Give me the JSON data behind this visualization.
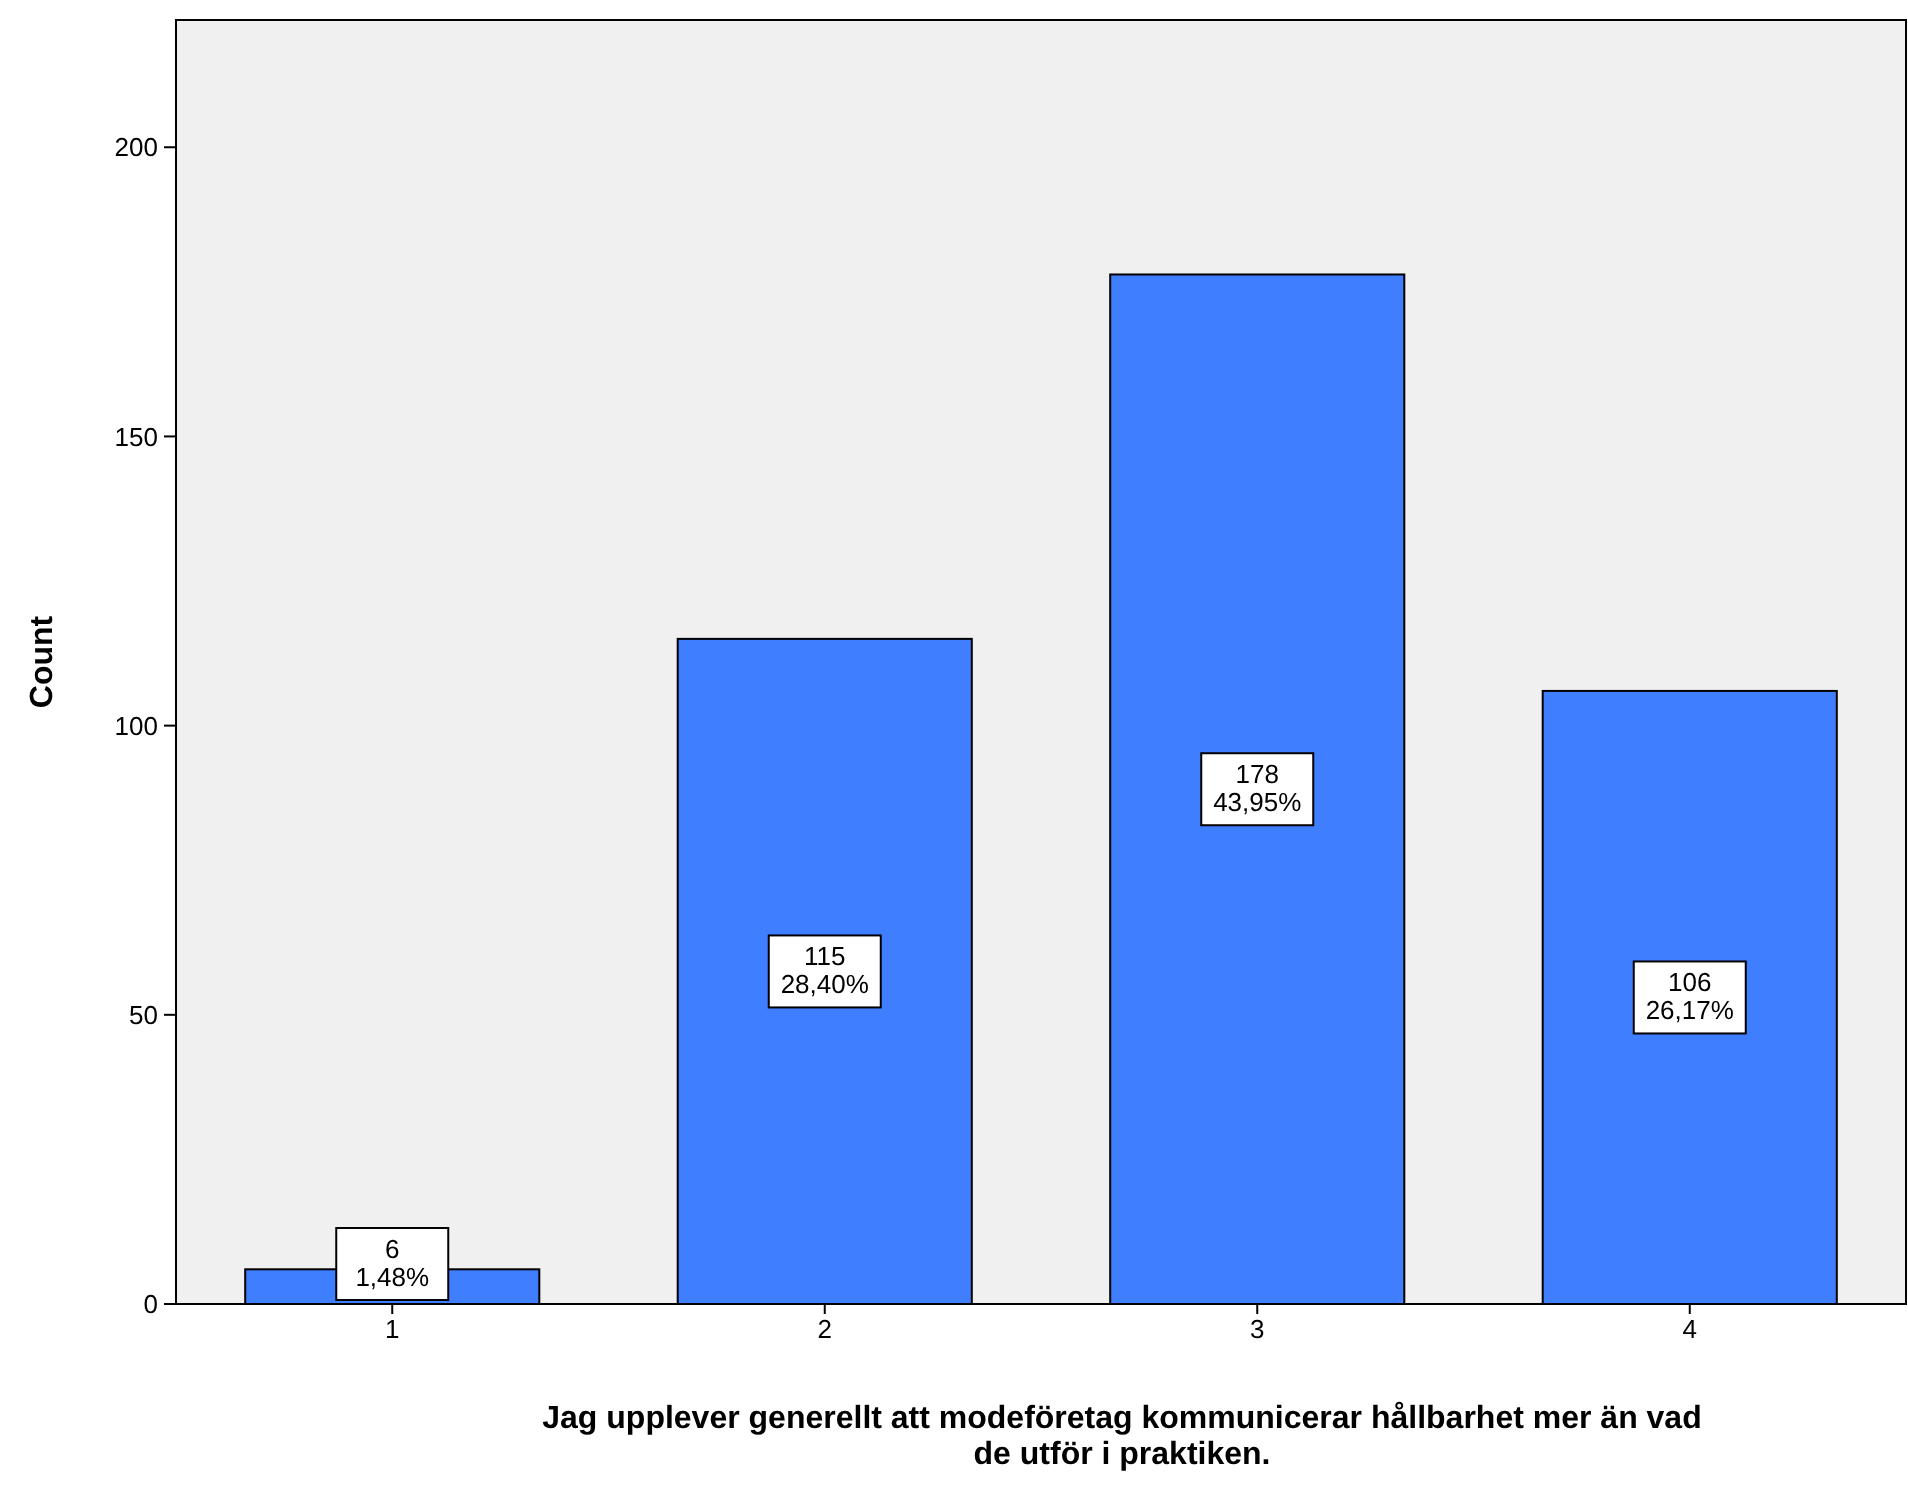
{
  "chart_data": {
    "type": "bar",
    "ylabel": "Count",
    "xlabel": "Jag upplever generellt att modeföretag kommunicerar hållbarhet mer än vad de utför i praktiken.",
    "categories": [
      "1",
      "2",
      "3",
      "4"
    ],
    "values": [
      6,
      115,
      178,
      106
    ],
    "value_labels": [
      "6\n1,48%",
      "115\n28,40%",
      "178\n43,95%",
      "106\n26,17%"
    ],
    "color": "#3f7fff",
    "ylim": [
      0,
      222
    ],
    "yticks": [
      0,
      50,
      100,
      150,
      200
    ],
    "grid": false
  }
}
